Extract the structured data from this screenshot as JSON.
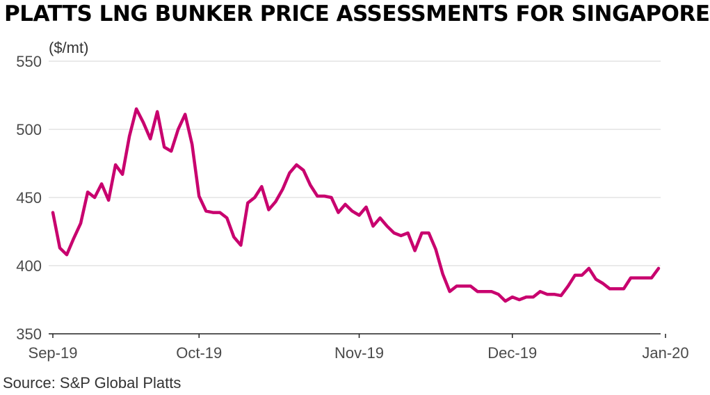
{
  "title": "PLATTS LNG BUNKER PRICE ASSESSMENTS FOR SINGAPORE",
  "source": "Source: S&P Global Platts",
  "chart_data": {
    "type": "line",
    "ylabel": "($/mt)",
    "ylim": [
      350,
      550
    ],
    "yticks": [
      550,
      500,
      450,
      400,
      350
    ],
    "xlabels": [
      "Sep-19",
      "Oct-19",
      "Nov-19",
      "Dec-19",
      "Jan-20"
    ],
    "xlabel_positions": [
      0,
      21,
      44,
      66,
      88
    ],
    "grid": true,
    "line_color": "#c8006e",
    "series": [
      {
        "values": [
          439,
          413,
          408,
          420,
          431,
          454,
          450,
          460,
          448,
          474,
          467,
          495,
          515,
          505,
          493,
          513,
          487,
          484,
          500,
          511,
          489,
          451,
          440,
          439,
          439,
          435,
          421,
          415,
          446,
          450,
          458,
          441,
          447,
          456,
          468,
          474,
          470,
          459,
          451,
          451,
          450,
          439,
          445,
          440,
          437,
          443,
          429,
          435,
          429,
          424,
          422,
          424,
          411,
          424,
          424,
          412,
          394,
          381,
          385,
          385,
          385,
          381,
          381,
          381,
          379,
          374,
          377,
          375,
          377,
          377,
          381,
          379,
          379,
          378,
          385,
          393,
          393,
          398,
          390,
          387,
          383,
          383,
          383,
          391,
          391,
          391,
          391,
          398
        ]
      }
    ]
  }
}
